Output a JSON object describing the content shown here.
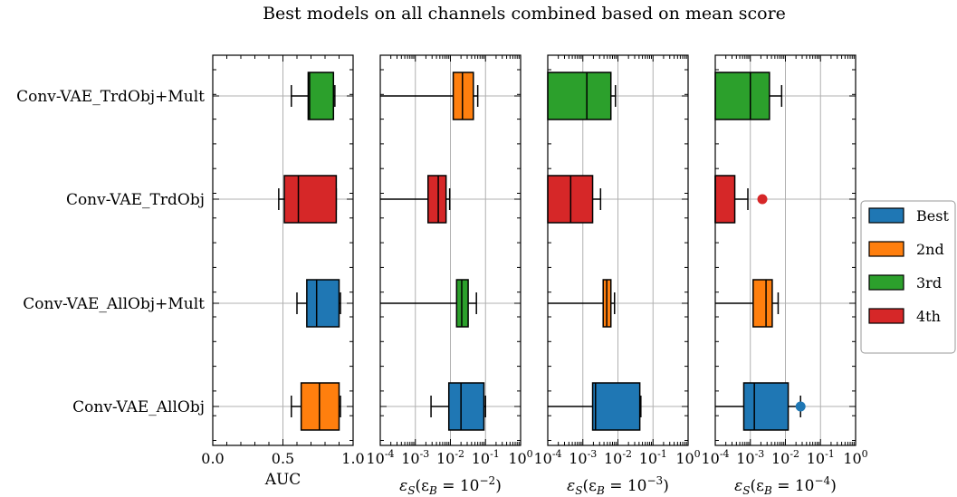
{
  "chart_data": {
    "type": "boxplot",
    "title": "Best models on all channels combined based on mean score",
    "categories": [
      "Conv-VAE_TrdObj+Mult",
      "Conv-VAE_TrdObj",
      "Conv-VAE_AllObj+Mult",
      "Conv-VAE_AllObj"
    ],
    "rank_colors": {
      "Best": "#1f77b4",
      "2nd": "#ff7f0e",
      "3rd": "#2ca02c",
      "4th": "#d62728"
    },
    "legend": {
      "entries": [
        "Best",
        "2nd",
        "3rd",
        "4th"
      ],
      "placement": "center-right"
    },
    "grid": true,
    "panels": [
      {
        "xlabel": "AUC",
        "scale": "linear",
        "xlim": [
          0.0,
          1.0
        ],
        "ticks": [
          {
            "v": 0.0,
            "label": "0.0"
          },
          {
            "v": 0.5,
            "label": "0.5"
          },
          {
            "v": 1.0,
            "label": "1.0"
          }
        ],
        "boxes": [
          {
            "category": "Conv-VAE_TrdObj+Mult",
            "rank": "3rd",
            "whislo": 0.56,
            "q1": 0.68,
            "med": 0.69,
            "q3": 0.86,
            "whishi": 0.87,
            "fliers": []
          },
          {
            "category": "Conv-VAE_TrdObj",
            "rank": "4th",
            "whislo": 0.47,
            "q1": 0.51,
            "med": 0.61,
            "q3": 0.88,
            "whishi": 0.88,
            "fliers": []
          },
          {
            "category": "Conv-VAE_AllObj+Mult",
            "rank": "Best",
            "whislo": 0.6,
            "q1": 0.67,
            "med": 0.74,
            "q3": 0.9,
            "whishi": 0.91,
            "fliers": []
          },
          {
            "category": "Conv-VAE_AllObj",
            "rank": "2nd",
            "whislo": 0.56,
            "q1": 0.63,
            "med": 0.76,
            "q3": 0.9,
            "whishi": 0.91,
            "fliers": []
          }
        ]
      },
      {
        "xlabel_main": "ε",
        "xlabel_sub": "S",
        "xlabel_rest": "(ε",
        "xlabel_sub2": "B",
        "xlabel_eq": " = 10",
        "xlabel_sup": "−2",
        "xlabel_end": ")",
        "scale": "log",
        "xlim": [
          0.0001,
          1
        ],
        "boxes": [
          {
            "category": "Conv-VAE_TrdObj+Mult",
            "rank": "2nd",
            "whislo": 0.0001,
            "q1": 0.012,
            "med": 0.022,
            "q3": 0.045,
            "whishi": 0.06,
            "fliers": []
          },
          {
            "category": "Conv-VAE_TrdObj",
            "rank": "4th",
            "whislo": 0.0001,
            "q1": 0.0023,
            "med": 0.0045,
            "q3": 0.0075,
            "whishi": 0.0095,
            "fliers": []
          },
          {
            "category": "Conv-VAE_AllObj+Mult",
            "rank": "3rd",
            "whislo": 0.0001,
            "q1": 0.015,
            "med": 0.021,
            "q3": 0.032,
            "whishi": 0.055,
            "fliers": []
          },
          {
            "category": "Conv-VAE_AllObj",
            "rank": "Best",
            "whislo": 0.0028,
            "q1": 0.009,
            "med": 0.02,
            "q3": 0.09,
            "whishi": 0.1,
            "fliers": []
          }
        ]
      },
      {
        "xlabel_main": "ε",
        "xlabel_sub": "S",
        "xlabel_rest": "(ε",
        "xlabel_sub2": "B",
        "xlabel_eq": " = 10",
        "xlabel_sup": "−3",
        "xlabel_end": ")",
        "scale": "log",
        "xlim": [
          0.0001,
          1
        ],
        "boxes": [
          {
            "category": "Conv-VAE_TrdObj+Mult",
            "rank": "3rd",
            "whislo": 0.0001,
            "q1": 0.0001,
            "med": 0.0013,
            "q3": 0.0063,
            "whishi": 0.0085,
            "fliers": []
          },
          {
            "category": "Conv-VAE_TrdObj",
            "rank": "4th",
            "whislo": 0.0001,
            "q1": 0.0001,
            "med": 0.00045,
            "q3": 0.0019,
            "whishi": 0.0032,
            "fliers": []
          },
          {
            "category": "Conv-VAE_AllObj+Mult",
            "rank": "2nd",
            "whislo": 0.0001,
            "q1": 0.0038,
            "med": 0.0048,
            "q3": 0.0063,
            "whishi": 0.008,
            "fliers": []
          },
          {
            "category": "Conv-VAE_AllObj",
            "rank": "Best",
            "whislo": 0.0001,
            "q1": 0.0019,
            "med": 0.0023,
            "q3": 0.042,
            "whishi": 0.045,
            "fliers": []
          }
        ]
      },
      {
        "xlabel_main": "ε",
        "xlabel_sub": "S",
        "xlabel_rest": "(ε",
        "xlabel_sub2": "B",
        "xlabel_eq": " = 10",
        "xlabel_sup": "−4",
        "xlabel_end": ")",
        "scale": "log",
        "xlim": [
          0.0001,
          1
        ],
        "boxes": [
          {
            "category": "Conv-VAE_TrdObj+Mult",
            "rank": "3rd",
            "whislo": 0.0001,
            "q1": 0.0001,
            "med": 0.001,
            "q3": 0.0035,
            "whishi": 0.0078,
            "fliers": []
          },
          {
            "category": "Conv-VAE_TrdObj",
            "rank": "4th",
            "whislo": 0.0001,
            "q1": 0.0001,
            "med": 0.0001,
            "q3": 0.00036,
            "whishi": 0.00085,
            "fliers": [
              0.0022
            ]
          },
          {
            "category": "Conv-VAE_AllObj+Mult",
            "rank": "2nd",
            "whislo": 0.0001,
            "q1": 0.0012,
            "med": 0.0028,
            "q3": 0.0042,
            "whishi": 0.0062,
            "fliers": []
          },
          {
            "category": "Conv-VAE_AllObj",
            "rank": "Best",
            "whislo": 0.0001,
            "q1": 0.00065,
            "med": 0.0013,
            "q3": 0.012,
            "whishi": 0.027,
            "fliers": [
              0.027
            ]
          }
        ]
      }
    ]
  }
}
